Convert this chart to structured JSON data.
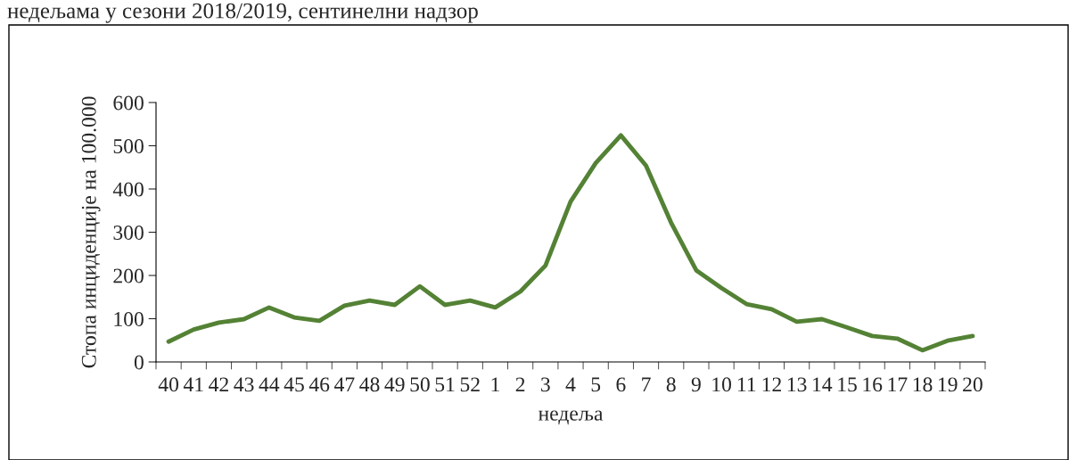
{
  "chart_data": {
    "type": "line",
    "title": "недељама у сезони 2018/2019, сентинелни надзор",
    "xlabel": "недеља",
    "ylabel": "Стопа инциденције на 100.000",
    "categories": [
      "40",
      "41",
      "42",
      "43",
      "44",
      "45",
      "46",
      "47",
      "48",
      "49",
      "50",
      "51",
      "52",
      "1",
      "2",
      "3",
      "4",
      "5",
      "6",
      "7",
      "8",
      "9",
      "10",
      "11",
      "12",
      "13",
      "14",
      "15",
      "16",
      "17",
      "18",
      "19",
      "20"
    ],
    "series": [
      {
        "color": "#548235",
        "values": [
          47,
          75,
          91,
          99,
          126,
          103,
          95,
          130,
          142,
          132,
          175,
          132,
          142,
          126,
          163,
          223,
          371,
          460,
          524,
          454,
          322,
          212,
          171,
          134,
          122,
          93,
          99,
          80,
          60,
          54,
          27,
          49,
          60
        ]
      }
    ],
    "ylim": [
      0,
      600
    ],
    "yticks": [
      0,
      100,
      200,
      300,
      400,
      500,
      600
    ],
    "grid": false,
    "legend": false,
    "marker": "none",
    "line_style": "solid"
  }
}
